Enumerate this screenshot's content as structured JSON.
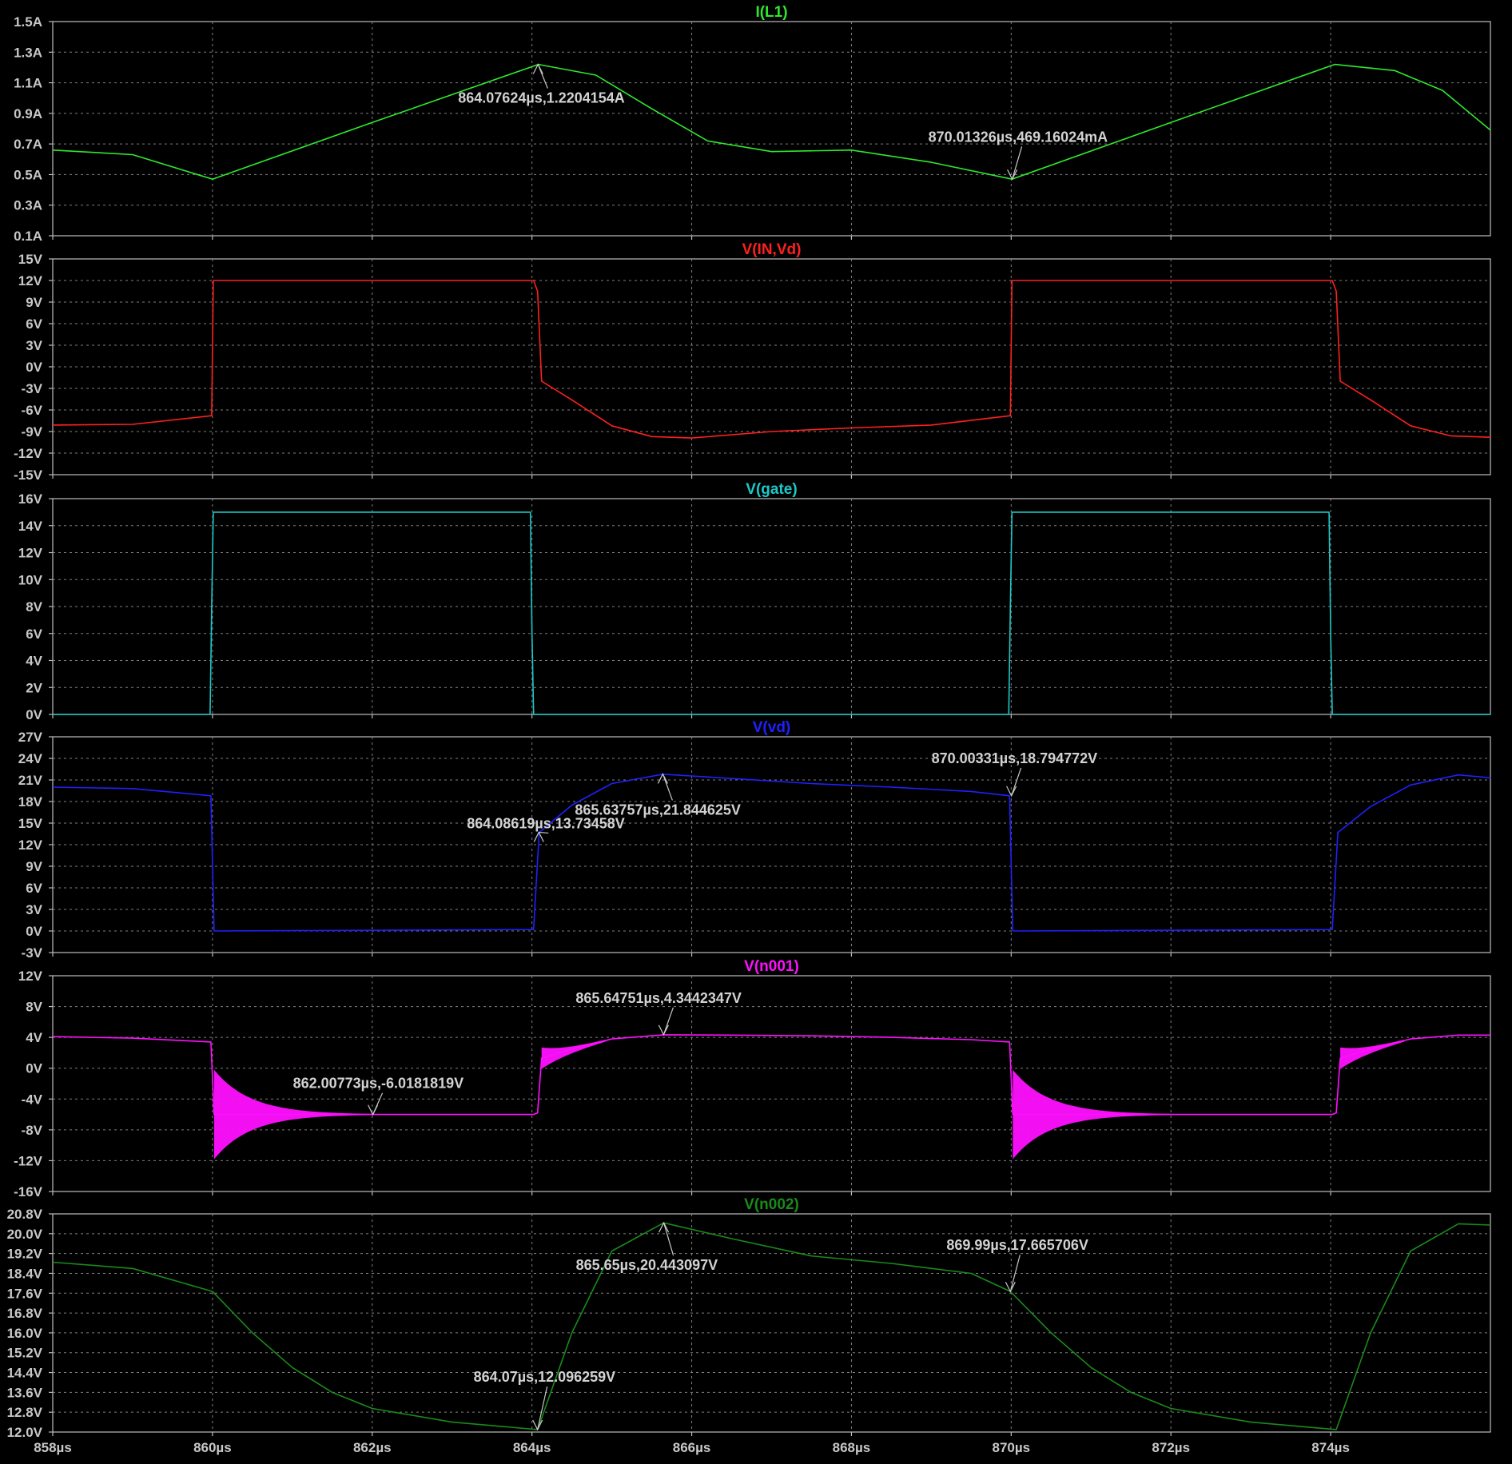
{
  "window": {
    "background": "#000000"
  },
  "chart_data": {
    "type": "line",
    "x_unit": "µs",
    "xlim": [
      858,
      876
    ],
    "x_tick_values": [
      858,
      860,
      862,
      864,
      866,
      868,
      870,
      872,
      874
    ],
    "x_tick_labels": [
      "858µs",
      "860µs",
      "862µs",
      "864µs",
      "866µs",
      "868µs",
      "870µs",
      "872µs",
      "874µs"
    ],
    "grid": true,
    "panels": [
      {
        "title": "I(L1)",
        "color": "#2ee82e",
        "ylim": [
          0.1,
          1.5
        ],
        "y_ticks": [
          0.1,
          0.3,
          0.5,
          0.7,
          0.9,
          1.1,
          1.3,
          1.5
        ],
        "y_tick_labels": [
          "0.1A",
          "0.3A",
          "0.5A",
          "0.7A",
          "0.9A",
          "1.1A",
          "1.3A",
          "1.5A"
        ],
        "x": [
          858,
          859,
          860,
          862,
          864.08,
          864.8,
          865.5,
          866.2,
          867,
          868,
          869,
          870.01,
          872,
          874.05,
          874.8,
          875.4,
          876
        ],
        "y": [
          0.66,
          0.63,
          0.47,
          0.84,
          1.22,
          1.15,
          0.93,
          0.72,
          0.65,
          0.66,
          0.58,
          0.47,
          0.84,
          1.22,
          1.18,
          1.05,
          0.79
        ],
        "annotations": [
          {
            "label": "864.07624µs,1.2204154A",
            "x": 864.076,
            "y": 1.2204
          },
          {
            "label": "870.01326µs,469.16024mA",
            "x": 870.013,
            "y": 0.4692
          }
        ]
      },
      {
        "title": "V(IN,Vd)",
        "color": "#ff2020",
        "ylim": [
          -15,
          15
        ],
        "y_ticks": [
          -15,
          -12,
          -9,
          -6,
          -3,
          0,
          3,
          6,
          9,
          12,
          15
        ],
        "y_tick_labels": [
          "-15V",
          "-12V",
          "-9V",
          "-6V",
          "-3V",
          "0V",
          "3V",
          "6V",
          "9V",
          "12V",
          "15V"
        ],
        "x": [
          858,
          859,
          859.99,
          860.01,
          862,
          864.02,
          864.07,
          864.12,
          864.5,
          865,
          865.5,
          866,
          867,
          868,
          869,
          869.99,
          870.01,
          872,
          874.02,
          874.07,
          874.12,
          874.5,
          875,
          875.5,
          876
        ],
        "y": [
          -8.1,
          -8.0,
          -6.8,
          12.0,
          12.0,
          12.0,
          10.5,
          -2.0,
          -4.6,
          -8.2,
          -9.7,
          -9.9,
          -9.0,
          -8.5,
          -8.1,
          -6.8,
          12.0,
          12.0,
          12.0,
          10.5,
          -2.0,
          -4.6,
          -8.2,
          -9.6,
          -9.8
        ],
        "annotations": []
      },
      {
        "title": "V(gate)",
        "color": "#1ec8c8",
        "ylim": [
          0,
          16
        ],
        "y_ticks": [
          0,
          2,
          4,
          6,
          8,
          10,
          12,
          14,
          16
        ],
        "y_tick_labels": [
          "0V",
          "2V",
          "4V",
          "6V",
          "8V",
          "10V",
          "12V",
          "14V",
          "16V"
        ],
        "x": [
          858,
          859.97,
          859.99,
          860.01,
          863.98,
          864.0,
          864.02,
          869.97,
          869.99,
          870.01,
          873.98,
          874.0,
          874.02,
          876
        ],
        "y": [
          0,
          0,
          8,
          15,
          15,
          6,
          0,
          0,
          8,
          15,
          15,
          6,
          0,
          0
        ],
        "annotations": []
      },
      {
        "title": "V(vd)",
        "color": "#2020ff",
        "ylim": [
          -3,
          27
        ],
        "y_ticks": [
          -3,
          0,
          3,
          6,
          9,
          12,
          15,
          18,
          21,
          24,
          27
        ],
        "y_tick_labels": [
          "-3V",
          "0V",
          "3V",
          "6V",
          "9V",
          "12V",
          "15V",
          "18V",
          "21V",
          "24V",
          "27V"
        ],
        "x": [
          858,
          859,
          859.98,
          860.02,
          864.02,
          864.09,
          864.5,
          865,
          865.64,
          866.5,
          867.5,
          868.5,
          869.5,
          869.98,
          870.02,
          874.02,
          874.09,
          874.5,
          875,
          875.6,
          876
        ],
        "y": [
          20.0,
          19.8,
          18.8,
          0.0,
          0.2,
          13.7,
          17.5,
          20.5,
          21.8,
          21.2,
          20.5,
          20.0,
          19.4,
          18.8,
          0.0,
          0.2,
          13.7,
          17.3,
          20.3,
          21.7,
          21.3
        ],
        "annotations": [
          {
            "label": "864.08619µs,13.73458V",
            "x": 864.086,
            "y": 13.73
          },
          {
            "label": "865.63757µs,21.844625V",
            "x": 865.638,
            "y": 21.84
          },
          {
            "label": "870.00331µs,18.794772V",
            "x": 870.003,
            "y": 18.79
          }
        ]
      },
      {
        "title": "V(n001)",
        "color": "#ff10ff",
        "ylim": [
          -16,
          12
        ],
        "y_ticks": [
          -16,
          -12,
          -8,
          -4,
          0,
          4,
          8,
          12
        ],
        "y_tick_labels": [
          "-16V",
          "-12V",
          "-8V",
          "-4V",
          "0V",
          "4V",
          "8V",
          "12V"
        ],
        "x": [
          858,
          859,
          859.98,
          860.02,
          862,
          864.02,
          864.07,
          864.12,
          864.5,
          865,
          865.65,
          866.5,
          867.5,
          868.5,
          869.5,
          869.98,
          870.02,
          872,
          874.02,
          874.07,
          874.12,
          874.5,
          875,
          875.6,
          876
        ],
        "y": [
          4.1,
          3.9,
          3.4,
          -6.0,
          -6.0,
          -6.0,
          -5.8,
          1.3,
          2.5,
          3.8,
          4.34,
          4.3,
          4.2,
          4.0,
          3.7,
          3.4,
          -6.0,
          -6.0,
          -6.0,
          -5.8,
          1.3,
          2.5,
          3.8,
          4.3,
          4.3
        ],
        "annotations": [
          {
            "label": "865.64751µs,4.3442347V",
            "x": 865.648,
            "y": 4.344
          },
          {
            "label": "862.00773µs,-6.0181819V",
            "x": 862.008,
            "y": -6.018
          }
        ]
      },
      {
        "title": "V(n002)",
        "color": "#1a8a1a",
        "ylim": [
          12.0,
          20.8
        ],
        "y_ticks": [
          12.0,
          12.8,
          13.6,
          14.4,
          15.2,
          16.0,
          16.8,
          17.6,
          18.4,
          19.2,
          20.0,
          20.8
        ],
        "y_tick_labels": [
          "12.0V",
          "12.8V",
          "13.6V",
          "14.4V",
          "15.2V",
          "16.0V",
          "16.8V",
          "17.6V",
          "18.4V",
          "19.2V",
          "20.0V",
          "20.8V"
        ],
        "x": [
          858,
          859,
          860,
          860.5,
          861,
          861.5,
          862,
          863,
          864.07,
          864.5,
          865,
          865.65,
          866.5,
          867.5,
          868.5,
          869.5,
          869.99,
          870.5,
          871,
          871.5,
          872,
          873,
          874.07,
          874.5,
          875,
          875.6,
          876
        ],
        "y": [
          18.85,
          18.6,
          17.67,
          16.0,
          14.6,
          13.6,
          12.95,
          12.4,
          12.1,
          16.0,
          19.3,
          20.44,
          19.8,
          19.1,
          18.8,
          18.4,
          17.67,
          16.0,
          14.6,
          13.6,
          12.95,
          12.4,
          12.1,
          16.0,
          19.3,
          20.4,
          20.35
        ],
        "annotations": [
          {
            "label": "865.65µs,20.443097V",
            "x": 865.65,
            "y": 20.443
          },
          {
            "label": "869.99µs,17.665706V",
            "x": 869.99,
            "y": 17.666
          },
          {
            "label": "864.07µs,12.096259V",
            "x": 864.07,
            "y": 12.096
          }
        ]
      }
    ]
  }
}
